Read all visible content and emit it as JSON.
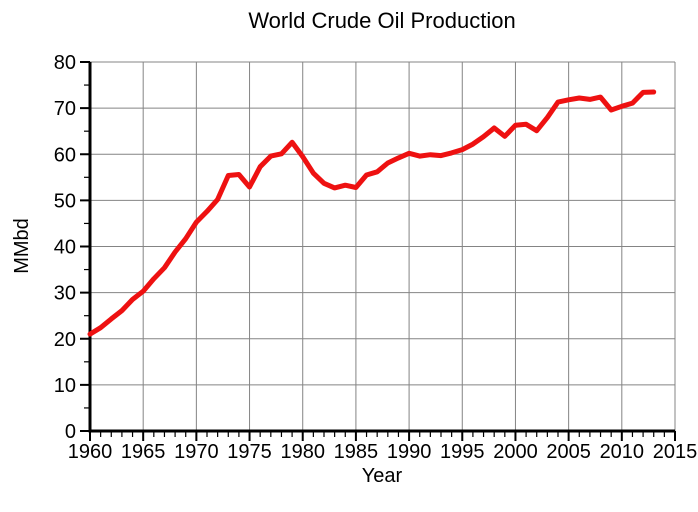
{
  "chart_data": {
    "type": "line",
    "title": "World Crude Oil Production",
    "xlabel": "Year",
    "ylabel": "MMbd",
    "xlim": [
      1960,
      2015
    ],
    "ylim": [
      0,
      80
    ],
    "x_major_ticks": [
      1960,
      1965,
      1970,
      1975,
      1980,
      1985,
      1990,
      1995,
      2000,
      2005,
      2010,
      2015
    ],
    "x_minor_step": 1,
    "y_major_ticks": [
      0,
      10,
      20,
      30,
      40,
      50,
      60,
      70,
      80
    ],
    "y_minor_step": 5,
    "grid": true,
    "legend_position": "none",
    "grid_color": "#848484",
    "axis_color": "#000000",
    "background_color": "#ffffff",
    "series": [
      {
        "name": "World crude oil production",
        "color": "#ee1111",
        "x": [
          1960,
          1961,
          1962,
          1963,
          1964,
          1965,
          1966,
          1967,
          1968,
          1969,
          1970,
          1971,
          1972,
          1973,
          1974,
          1975,
          1976,
          1977,
          1978,
          1979,
          1980,
          1981,
          1982,
          1983,
          1984,
          1985,
          1986,
          1987,
          1988,
          1989,
          1990,
          1991,
          1992,
          1993,
          1994,
          1995,
          1996,
          1997,
          1998,
          1999,
          2000,
          2001,
          2002,
          2003,
          2004,
          2005,
          2006,
          2007,
          2008,
          2009,
          2010,
          2011,
          2012,
          2013
        ],
        "values": [
          21.0,
          22.4,
          24.3,
          26.1,
          28.5,
          30.3,
          33.0,
          35.4,
          38.8,
          41.7,
          45.3,
          47.6,
          50.2,
          55.4,
          55.6,
          52.9,
          57.3,
          59.6,
          60.1,
          62.6,
          59.5,
          55.9,
          53.7,
          52.7,
          53.3,
          52.8,
          55.5,
          56.2,
          58.1,
          59.2,
          60.2,
          59.6,
          59.9,
          59.7,
          60.3,
          61.0,
          62.2,
          63.8,
          65.7,
          63.9,
          66.3,
          66.5,
          65.1,
          68.0,
          71.3,
          71.8,
          72.2,
          71.9,
          72.4,
          69.6,
          70.4,
          71.1,
          73.4,
          73.5
        ]
      }
    ]
  }
}
